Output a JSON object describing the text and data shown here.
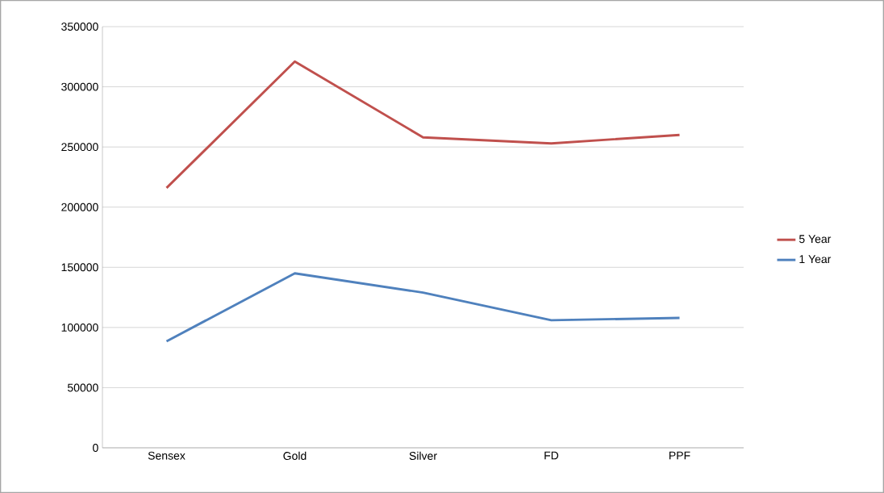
{
  "chart_data": {
    "type": "line",
    "categories": [
      "Sensex",
      "Gold",
      "Silver",
      "FD",
      "PPF"
    ],
    "series": [
      {
        "name": "5 Year",
        "color": "#c0504d",
        "values": [
          216000,
          321000,
          258000,
          253000,
          260000
        ]
      },
      {
        "name": "1 Year",
        "color": "#4f81bd",
        "values": [
          88500,
          145000,
          129000,
          106000,
          108000
        ]
      }
    ],
    "ylim": [
      0,
      350000
    ],
    "yticks": [
      0,
      50000,
      100000,
      150000,
      200000,
      250000,
      300000,
      350000
    ],
    "grid": "y",
    "legend": "right",
    "marker": "none",
    "line_style": "solid"
  }
}
